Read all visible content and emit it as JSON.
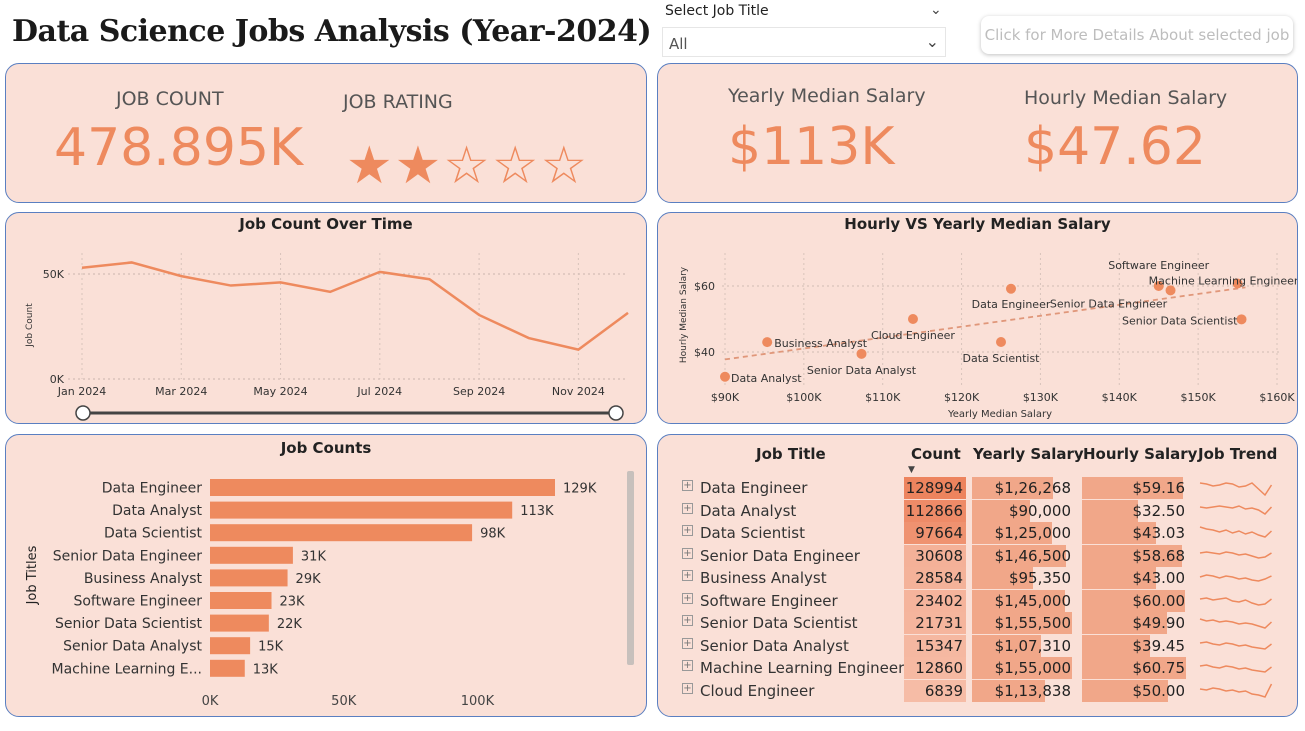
{
  "header": {
    "title": "Data Science Jobs Analysis (Year-2024)",
    "slicer_label": "Select Job Title",
    "slicer_value": "All",
    "details_button": "Click for More Details About selected job"
  },
  "kpis": {
    "job_count_label": "JOB COUNT",
    "job_count_value": "478.895K",
    "job_rating_label": "JOB RATING",
    "job_rating_stars": 2,
    "job_rating_max": 5,
    "yearly_label": "Yearly Median Salary",
    "yearly_value": "$113K",
    "hourly_label": "Hourly Median Salary",
    "hourly_value": "$47.62"
  },
  "line_chart": {
    "title": "Job Count Over Time",
    "ylabel": "Job Count",
    "y_ticks": [
      "0K",
      "50K"
    ],
    "x_ticks": [
      "Jan 2024",
      "Mar 2024",
      "May 2024",
      "Jul 2024",
      "Sep 2024",
      "Nov 2024"
    ]
  },
  "scatter_chart": {
    "title": "Hourly VS Yearly Median Salary",
    "xlabel": "Yearly Median Salary",
    "ylabel": "Hourly Median Salary",
    "x_ticks": [
      "$90K",
      "$100K",
      "$110K",
      "$120K",
      "$130K",
      "$140K",
      "$150K",
      "$160K"
    ],
    "y_ticks": [
      "$40",
      "$60"
    ]
  },
  "bar_chart": {
    "title": "Job Counts",
    "ylabel": "Job Titles",
    "x_ticks": [
      "0K",
      "50K",
      "100K"
    ]
  },
  "table": {
    "headers": {
      "title": "Job Title",
      "count": "Count",
      "yearly": "Yearly Salary",
      "hourly": "Hourly Salary",
      "trend": "Job Trend"
    },
    "rows": [
      {
        "name": "Data Engineer",
        "count": "128994",
        "yearly": "$1,26,268",
        "hourly": "$59.16"
      },
      {
        "name": "Data Analyst",
        "count": "112866",
        "yearly": "$90,000",
        "hourly": "$32.50"
      },
      {
        "name": "Data Scientist",
        "count": "97664",
        "yearly": "$1,25,000",
        "hourly": "$43.03"
      },
      {
        "name": "Senior Data Engineer",
        "count": "30608",
        "yearly": "$1,46,500",
        "hourly": "$58.68"
      },
      {
        "name": "Business Analyst",
        "count": "28584",
        "yearly": "$95,350",
        "hourly": "$43.00"
      },
      {
        "name": "Software Engineer",
        "count": "23402",
        "yearly": "$1,45,000",
        "hourly": "$60.00"
      },
      {
        "name": "Senior Data Scientist",
        "count": "21731",
        "yearly": "$1,55,500",
        "hourly": "$49.90"
      },
      {
        "name": "Senior Data Analyst",
        "count": "15347",
        "yearly": "$1,07,310",
        "hourly": "$39.45"
      },
      {
        "name": "Machine Learning Engineer",
        "count": "12860",
        "yearly": "$1,55,000",
        "hourly": "$60.75"
      },
      {
        "name": "Cloud Engineer",
        "count": "6839",
        "yearly": "$1,13,838",
        "hourly": "$50.00"
      }
    ]
  },
  "colors": {
    "accent": "#ee8a5e",
    "panel_bg": "#fae0d7",
    "border": "#5a7fc1"
  },
  "chart_data": [
    {
      "type": "line",
      "x": [
        "2024-01",
        "2024-02",
        "2024-03",
        "2024-04",
        "2024-05",
        "2024-06",
        "2024-07",
        "2024-08",
        "2024-09",
        "2024-10",
        "2024-11",
        "2024-12"
      ],
      "values": [
        53000,
        55500,
        49000,
        44500,
        46000,
        41500,
        51000,
        47500,
        30500,
        19500,
        14000,
        31500
      ],
      "ylim": [
        0,
        60000
      ]
    },
    {
      "type": "scatter",
      "points": [
        {
          "label": "Data Analyst",
          "x": 90000,
          "y": 32.5
        },
        {
          "label": "Business Analyst",
          "x": 95350,
          "y": 43.0
        },
        {
          "label": "Senior Data Analyst",
          "x": 107310,
          "y": 39.45
        },
        {
          "label": "Cloud Engineer",
          "x": 113838,
          "y": 50.0
        },
        {
          "label": "Data Scientist",
          "x": 125000,
          "y": 43.03
        },
        {
          "label": "Data Engineer",
          "x": 126268,
          "y": 59.16
        },
        {
          "label": "Software Engineer",
          "x": 145000,
          "y": 60.0
        },
        {
          "label": "Senior Data Engineer",
          "x": 146500,
          "y": 58.68
        },
        {
          "label": "Machine Learning Engineer",
          "x": 155000,
          "y": 60.75
        },
        {
          "label": "Senior Data Scientist",
          "x": 155500,
          "y": 49.9
        }
      ],
      "xlim": [
        90000,
        160000
      ],
      "ylim": [
        30,
        70
      ]
    },
    {
      "type": "bar",
      "categories": [
        "Data Engineer",
        "Data Analyst",
        "Data Scientist",
        "Senior Data Engineer",
        "Business Analyst",
        "Software Engineer",
        "Senior Data Scientist",
        "Senior Data Analyst",
        "Machine Learning E..."
      ],
      "values": [
        129000,
        113000,
        98000,
        31000,
        29000,
        23000,
        22000,
        15000,
        13000
      ],
      "labels": [
        "129K",
        "113K",
        "98K",
        "31K",
        "29K",
        "23K",
        "22K",
        "15K",
        "13K"
      ],
      "xlim": [
        0,
        140000
      ]
    }
  ]
}
